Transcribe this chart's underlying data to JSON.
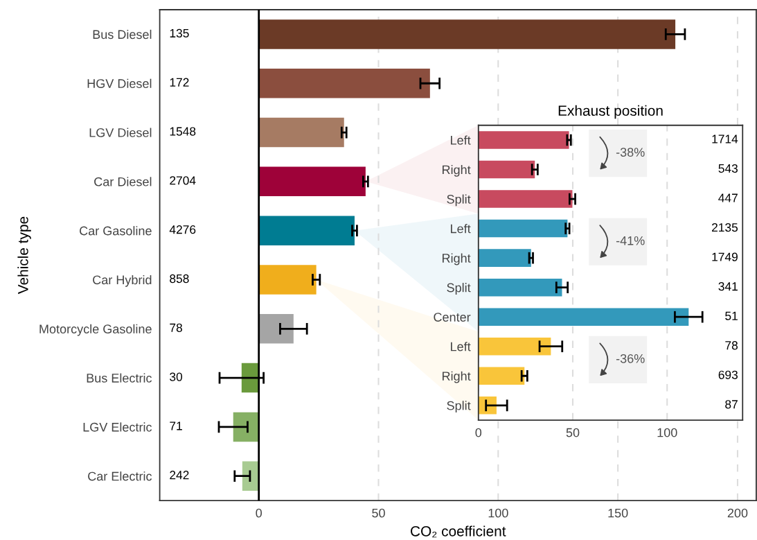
{
  "chart_data": [
    {
      "type": "bar",
      "orientation": "horizontal",
      "xlabel": "CO₂ coefficient",
      "ylabel": "Vehicle type",
      "categories": [
        "Bus Diesel",
        "HGV Diesel",
        "LGV Diesel",
        "Car Diesel",
        "Car Gasoline",
        "Car Hybrid",
        "Motorcycle Gasoline",
        "Bus Electric",
        "LGV Electric",
        "Car Electric"
      ],
      "values": [
        174,
        71.5,
        35.6,
        44.6,
        40,
        24,
        14.5,
        -7.2,
        -10.7,
        -6.9
      ],
      "errors": [
        4,
        4,
        1,
        1,
        1,
        1.5,
        5.6,
        9.2,
        6,
        3.2
      ],
      "colors": [
        "#6b3a26",
        "#8b4e3e",
        "#a67b63",
        "#9e0239",
        "#007c92",
        "#f0ae1c",
        "#a5a5a5",
        "#6a9a3c",
        "#86b064",
        "#a8cb92"
      ],
      "xlim": [
        -41.4,
        207.8
      ],
      "xticks": [
        0,
        50,
        100,
        150,
        200
      ],
      "grid": "x",
      "ref_lines": [
        {
          "axis": "x",
          "value": 0,
          "color": "#000000"
        }
      ],
      "annotations": [
        "135",
        "172",
        "1548",
        "2704",
        "4276",
        "858",
        "78",
        "30",
        "71",
        "242"
      ]
    },
    {
      "type": "bar",
      "orientation": "horizontal",
      "title": "Exhaust position",
      "categories": [
        "Left",
        "Right",
        "Split",
        "Left",
        "Right",
        "Split",
        "Center",
        "Left",
        "Right",
        "Split"
      ],
      "values": [
        48,
        29.9,
        49.8,
        47.2,
        27.9,
        44.3,
        111.4,
        38.4,
        24.4,
        9.6
      ],
      "errors": [
        1,
        1.5,
        1.5,
        1,
        1,
        3,
        7.3,
        6,
        1.5,
        5.6
      ],
      "colors": [
        "#c84a5f",
        "#c84a5f",
        "#c84a5f",
        "#3399bb",
        "#3399bb",
        "#3399bb",
        "#3399bb",
        "#f9c53a",
        "#f9c53a",
        "#f9c53a"
      ],
      "xlim": [
        0,
        140
      ],
      "xticks": [
        0,
        50,
        100
      ],
      "grid": "x",
      "annotations": [
        "1714",
        "543",
        "447",
        "2135",
        "1749",
        "341",
        "51",
        "78",
        "693",
        "87",
        "-38%",
        "-41%",
        "-36%"
      ]
    }
  ]
}
